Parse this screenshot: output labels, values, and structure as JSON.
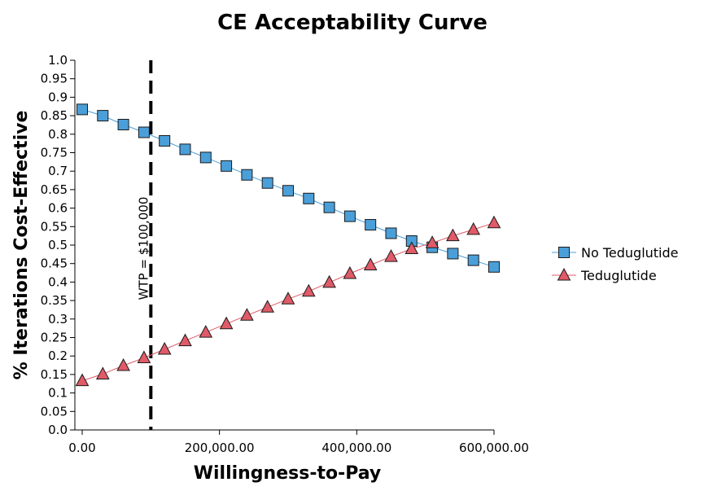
{
  "chart_data": {
    "type": "line",
    "title": "CE Acceptability Curve",
    "xlabel": "Willingness-to-Pay",
    "ylabel": "% Iterations Cost-Effective",
    "xlim": [
      0,
      600000
    ],
    "ylim": [
      0,
      1.0
    ],
    "x_ticks": [
      0,
      200000,
      400000,
      600000
    ],
    "x_tick_labels": [
      "0.00",
      "200,000.00",
      "400,000.00",
      "600,000.00"
    ],
    "y_ticks": [
      0.0,
      0.05,
      0.1,
      0.15,
      0.2,
      0.25,
      0.3,
      0.35,
      0.4,
      0.45,
      0.5,
      0.55,
      0.6,
      0.65,
      0.7,
      0.75,
      0.8,
      0.85,
      0.9,
      0.95,
      1.0
    ],
    "y_tick_labels": [
      "0.0",
      "0.05",
      "0.1",
      "0.15",
      "0.2",
      "0.25",
      "0.3",
      "0.35",
      "0.4",
      "0.45",
      "0.5",
      "0.55",
      "0.6",
      "0.65",
      "0.7",
      "0.75",
      "0.8",
      "0.85",
      "0.9",
      "0.95",
      "1.0"
    ],
    "x": [
      0,
      30000,
      60000,
      90000,
      120000,
      150000,
      180000,
      210000,
      240000,
      270000,
      300000,
      330000,
      360000,
      390000,
      420000,
      450000,
      480000,
      510000,
      540000,
      570000,
      600000
    ],
    "series": [
      {
        "name": "No Teduglutide",
        "marker": "square",
        "color": "#4a9fd9",
        "values": [
          0.867,
          0.85,
          0.826,
          0.805,
          0.782,
          0.759,
          0.737,
          0.714,
          0.69,
          0.668,
          0.647,
          0.626,
          0.602,
          0.578,
          0.555,
          0.532,
          0.511,
          0.494,
          0.477,
          0.459,
          0.441
        ]
      },
      {
        "name": "Teduglutide",
        "marker": "triangle",
        "color": "#e05a68",
        "values": [
          0.133,
          0.151,
          0.174,
          0.195,
          0.218,
          0.241,
          0.264,
          0.287,
          0.31,
          0.332,
          0.354,
          0.375,
          0.399,
          0.423,
          0.446,
          0.469,
          0.49,
          0.506,
          0.525,
          0.542,
          0.56
        ]
      }
    ],
    "threshold": {
      "x": 100000,
      "label": "WTP = $100,000",
      "style": "dashed"
    },
    "legend_position": "right",
    "grid": false
  }
}
